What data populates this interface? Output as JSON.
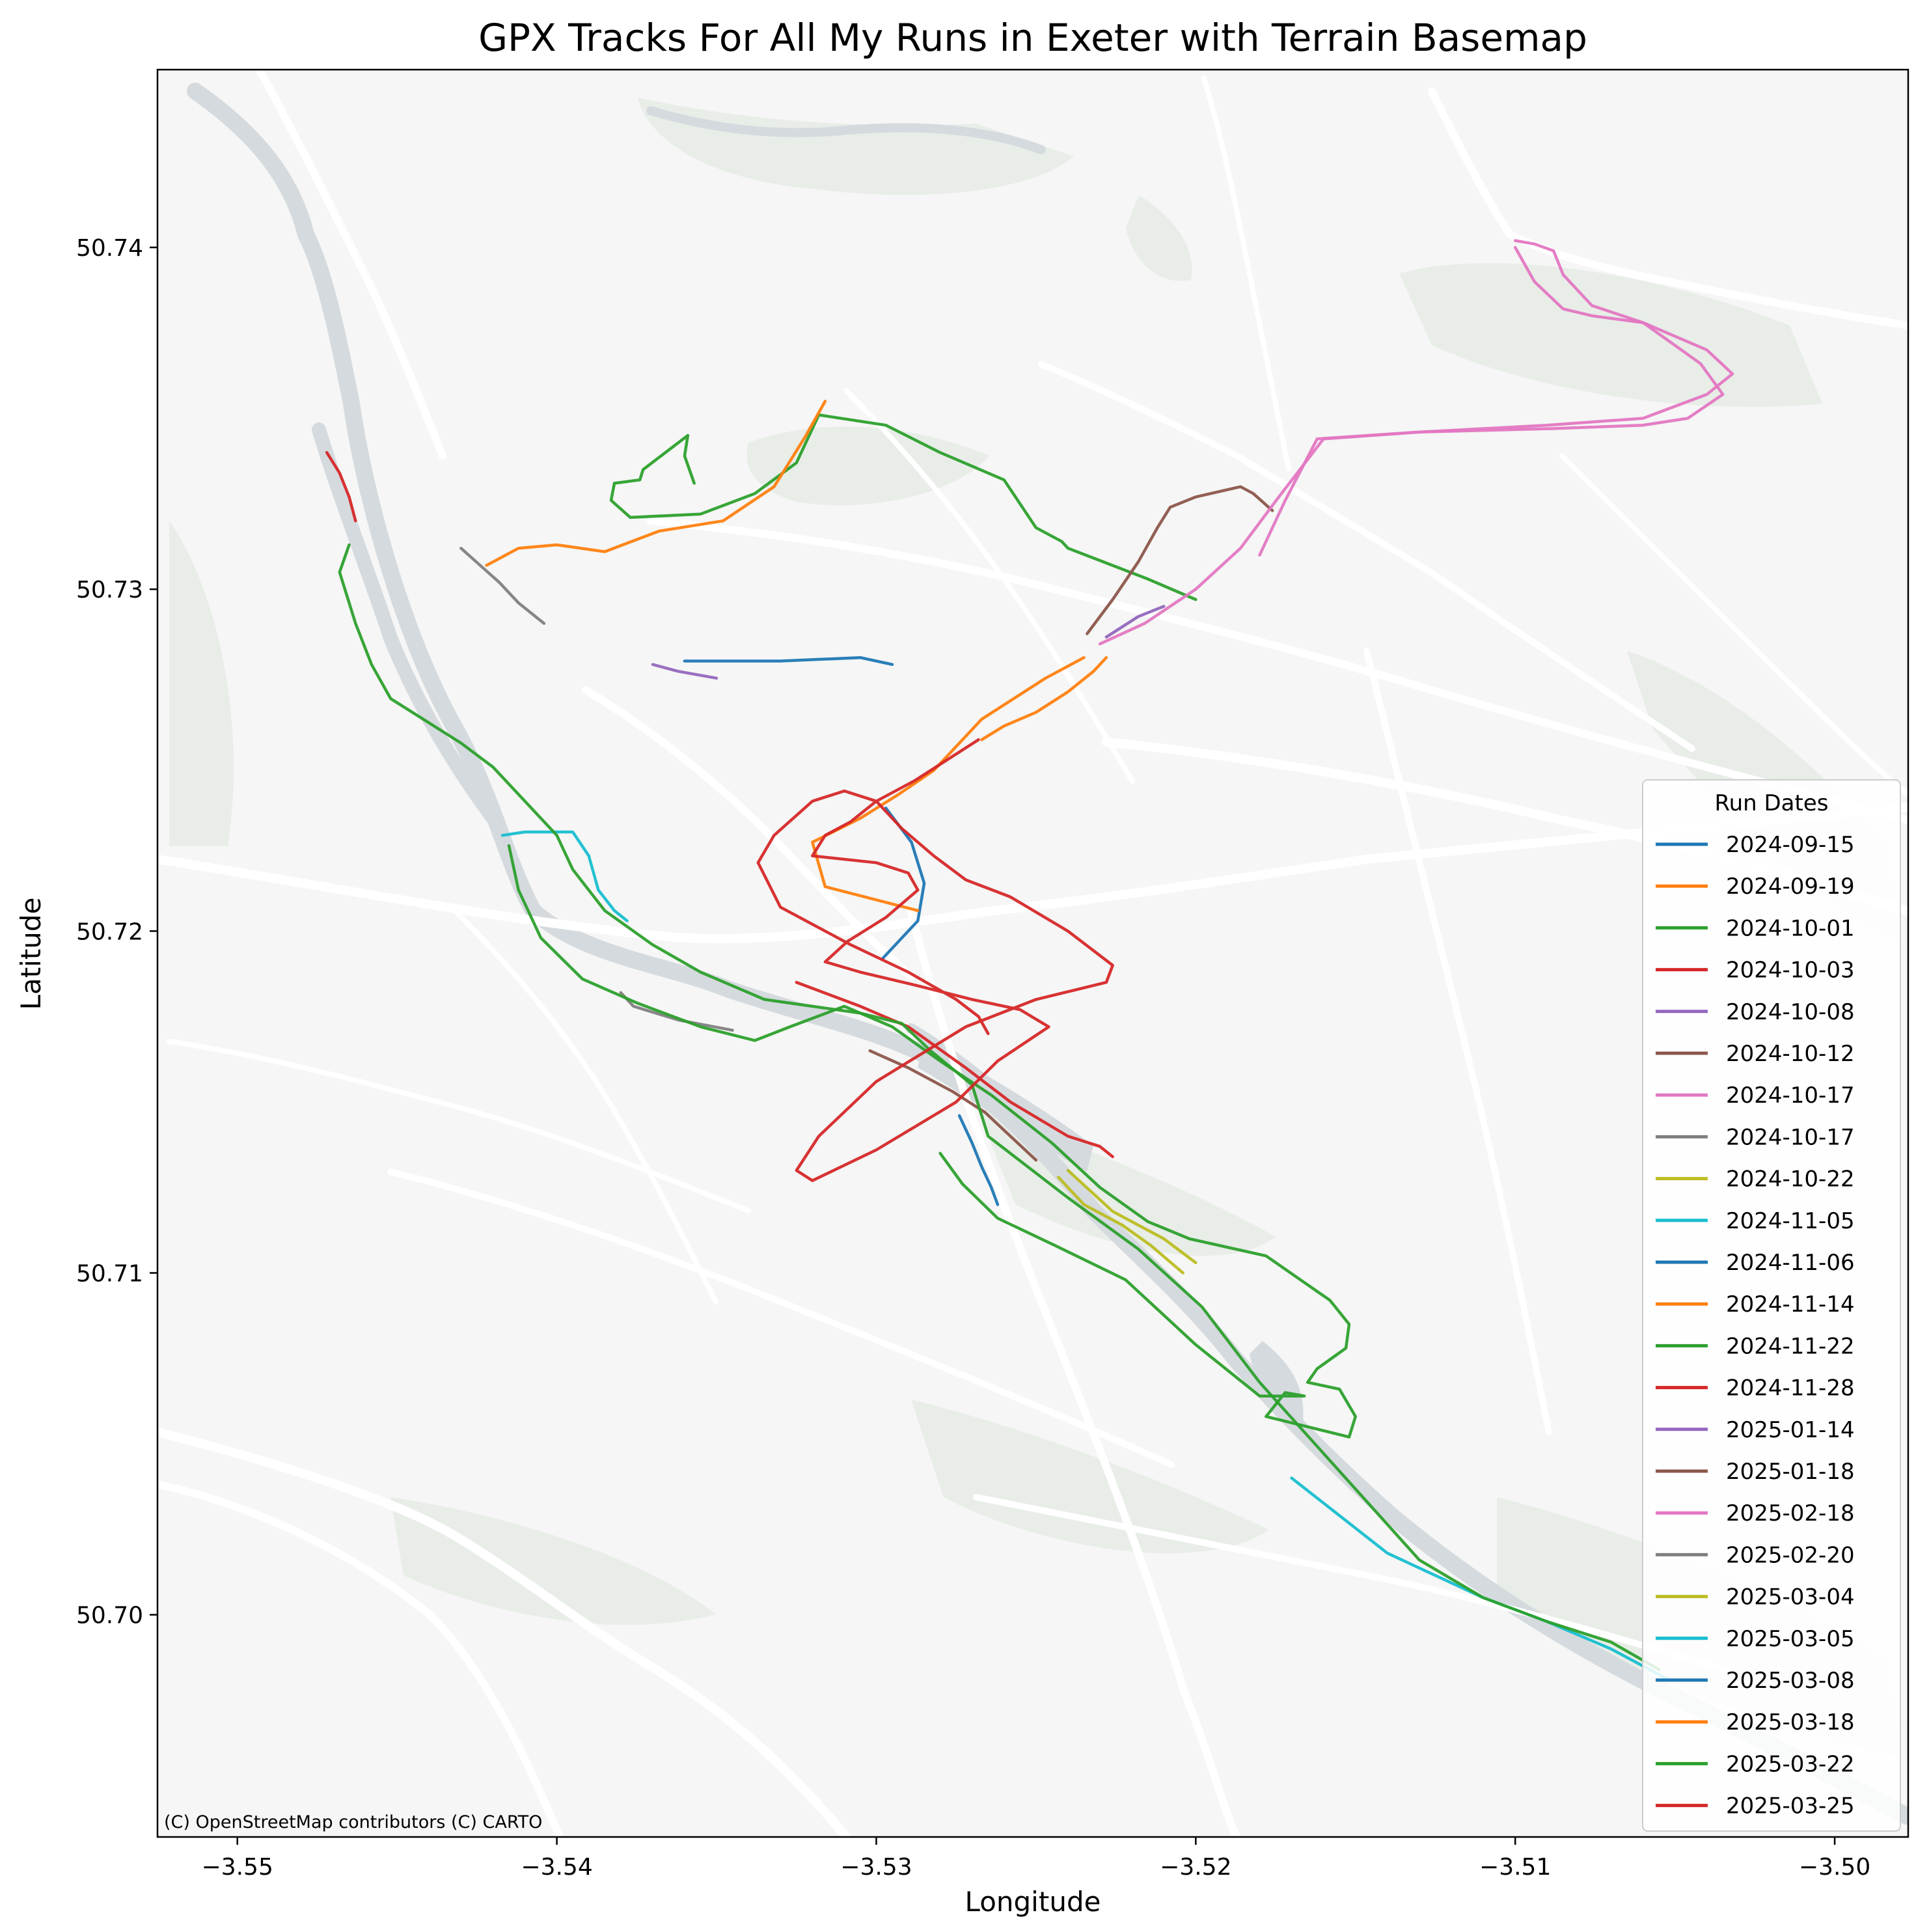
{
  "chart_data": {
    "type": "line",
    "title": "GPX Tracks For All My Runs in Exeter with Terrain Basemap",
    "xlabel": "Longitude",
    "ylabel": "Latitude",
    "xlim": [
      -3.5525,
      -3.4977
    ],
    "ylim": [
      50.6935,
      50.7452
    ],
    "xticks": [
      -3.55,
      -3.54,
      -3.53,
      -3.52,
      -3.51,
      -3.5
    ],
    "xtick_labels": [
      "−3.55",
      "−3.54",
      "−3.53",
      "−3.52",
      "−3.51",
      "−3.50"
    ],
    "yticks": [
      50.7,
      50.71,
      50.72,
      50.73,
      50.74
    ],
    "ytick_labels": [
      "50.70",
      "50.71",
      "50.72",
      "50.73",
      "50.74"
    ],
    "grid": false,
    "legend": {
      "title": "Run Dates",
      "placement": "lower-right"
    },
    "attribution": "(C) OpenStreetMap contributors (C) CARTO",
    "series": [
      {
        "name": "2024-09-15",
        "color": "#1f77b4",
        "x": [
          -3.5297,
          -3.5289,
          -3.5285,
          -3.5287,
          -3.5298
        ],
        "y": [
          50.7236,
          50.7226,
          50.7214,
          50.7203,
          50.7192
        ]
      },
      {
        "name": "2024-09-19",
        "color": "#ff7f0e",
        "x": [
          -3.5235,
          -3.5247,
          -3.5267,
          -3.5275,
          -3.5282,
          -3.5293,
          -3.5305,
          -3.532,
          -3.5316,
          -3.5287
        ],
        "y": [
          50.728,
          50.7274,
          50.7262,
          50.7254,
          50.7247,
          50.724,
          50.7233,
          50.7226,
          50.7213,
          50.7206
        ]
      },
      {
        "name": "2024-10-01",
        "color": "#2ca02c",
        "x": [
          -3.5357,
          -3.536,
          -3.5359,
          -3.5373,
          -3.5374,
          -3.5382,
          -3.5383,
          -3.5377,
          -3.5355,
          -3.5338,
          -3.5325,
          -3.5318,
          -3.5297,
          -3.528,
          -3.526,
          -3.525,
          -3.5242,
          -3.524,
          -3.5215,
          -3.52
        ],
        "y": [
          50.7331,
          50.7339,
          50.7345,
          50.7335,
          50.7332,
          50.7331,
          50.7326,
          50.7321,
          50.7322,
          50.7328,
          50.7337,
          50.7351,
          50.7348,
          50.734,
          50.7332,
          50.7318,
          50.7314,
          50.7312,
          50.7303,
          50.7297
        ]
      },
      {
        "name": "2024-10-03",
        "color": "#d62728",
        "x": [
          -3.5472,
          -3.5468,
          -3.5465,
          -3.5463
        ],
        "y": [
          50.734,
          50.7334,
          50.7327,
          50.732
        ]
      },
      {
        "name": "2024-10-08",
        "color": "#9467bd",
        "x": [
          -3.521,
          -3.5218,
          -3.5228
        ],
        "y": [
          50.7295,
          50.7292,
          50.7286
        ]
      },
      {
        "name": "2024-10-12",
        "color": "#8c564b",
        "x": [
          -3.5234,
          -3.5226,
          -3.5218,
          -3.5212,
          -3.5208,
          -3.52,
          -3.5186,
          -3.5182,
          -3.5176
        ],
        "y": [
          50.7287,
          50.7297,
          50.7308,
          50.7318,
          50.7324,
          50.7327,
          50.733,
          50.7328,
          50.7323
        ]
      },
      {
        "name": "2024-10-17",
        "color": "#e377c2",
        "x": [
          -3.518,
          -3.5172,
          -3.5162,
          -3.513,
          -3.509,
          -3.506,
          -3.504,
          -3.5032,
          -3.504,
          -3.506,
          -3.5076,
          -3.5085,
          -3.5094,
          -3.51
        ],
        "y": [
          50.731,
          50.7326,
          50.7344,
          50.7346,
          50.7348,
          50.735,
          50.7357,
          50.7363,
          50.737,
          50.7378,
          50.738,
          50.7382,
          50.739,
          50.74
        ]
      },
      {
        "name": "2024-10-17",
        "color": "#7f7f7f",
        "x": [
          -3.538,
          -3.5376,
          -3.5362,
          -3.5345
        ],
        "y": [
          50.7182,
          50.7178,
          50.7174,
          50.7171
        ]
      },
      {
        "name": "2024-10-22",
        "color": "#bcbd22",
        "x": [
          -3.5243,
          -3.5235,
          -3.5223,
          -3.5214,
          -3.5204
        ],
        "y": [
          50.7128,
          50.712,
          50.7114,
          50.7108,
          50.71
        ]
      },
      {
        "name": "2024-11-05",
        "color": "#17becf",
        "x": [
          -3.5417,
          -3.541,
          -3.5395,
          -3.539,
          -3.5387,
          -3.5382,
          -3.5378
        ],
        "y": [
          50.7228,
          50.7229,
          50.7229,
          50.7222,
          50.7212,
          50.7206,
          50.7203
        ]
      },
      {
        "name": "2024-11-06",
        "color": "#1f77b4",
        "x": [
          -3.5274,
          -3.527,
          -3.5267,
          -3.5264,
          -3.5262
        ],
        "y": [
          50.7146,
          50.7138,
          50.7131,
          50.7125,
          50.712
        ]
      },
      {
        "name": "2024-11-14",
        "color": "#ff7f0e",
        "x": [
          -3.5422,
          -3.5412,
          -3.54,
          -3.5385,
          -3.5368,
          -3.5348,
          -3.5332,
          -3.5322,
          -3.5316
        ],
        "y": [
          50.7307,
          50.7312,
          50.7313,
          50.7311,
          50.7317,
          50.732,
          50.733,
          50.7345,
          50.7355
        ]
      },
      {
        "name": "2024-11-22",
        "color": "#2ca02c",
        "x": [
          -3.5415,
          -3.5412,
          -3.5405,
          -3.5392,
          -3.5375,
          -3.5355,
          -3.5338,
          -3.5327,
          -3.531,
          -3.5295,
          -3.528,
          -3.5264,
          -3.5245,
          -3.523,
          -3.5215,
          -3.5202,
          -3.5178,
          -3.5158,
          -3.5152,
          -3.5153,
          -3.5162,
          -3.5165,
          -3.5155,
          -3.515,
          -3.5152,
          -3.5178,
          -3.5172,
          -3.5166,
          -3.518,
          -3.52,
          -3.5222,
          -3.5244,
          -3.5262,
          -3.5273,
          -3.528
        ],
        "y": [
          50.7225,
          50.7212,
          50.7198,
          50.7186,
          50.7179,
          50.7172,
          50.7168,
          50.7172,
          50.7178,
          50.7172,
          50.7162,
          50.7152,
          50.7138,
          50.7125,
          50.7115,
          50.711,
          50.7105,
          50.7092,
          50.7085,
          50.7078,
          50.7072,
          50.7068,
          50.7066,
          50.7058,
          50.7052,
          50.7058,
          50.7065,
          50.7064,
          50.7064,
          50.7079,
          50.7098,
          50.7108,
          50.7116,
          50.7126,
          50.7135
        ]
      },
      {
        "name": "2024-11-28",
        "color": "#d62728",
        "x": [
          -3.5325,
          -3.5305,
          -3.529,
          -3.5272,
          -3.5258,
          -3.524,
          -3.523,
          -3.5226
        ],
        "y": [
          50.7185,
          50.7178,
          50.7172,
          50.716,
          50.715,
          50.714,
          50.7137,
          50.7134
        ]
      },
      {
        "name": "2025-01-14",
        "color": "#9467bd",
        "x": [
          -3.537,
          -3.5362,
          -3.535
        ],
        "y": [
          50.7278,
          50.7276,
          50.7274
        ]
      },
      {
        "name": "2025-01-18",
        "color": "#8c564b",
        "x": [
          -3.5302,
          -3.529,
          -3.5276,
          -3.5266,
          -3.5258,
          -3.525
        ],
        "y": [
          50.7165,
          50.716,
          50.7153,
          50.7147,
          50.714,
          50.7133
        ]
      },
      {
        "name": "2025-02-18",
        "color": "#e377c2",
        "x": [
          -3.51,
          -3.5094,
          -3.5088,
          -3.5085,
          -3.5076,
          -3.506,
          -3.5042,
          -3.5035,
          -3.5046,
          -3.506,
          -3.5088,
          -3.513,
          -3.516,
          -3.5174,
          -3.5186,
          -3.52,
          -3.5216,
          -3.523
        ],
        "y": [
          50.7402,
          50.7401,
          50.7399,
          50.7392,
          50.7383,
          50.7378,
          50.7366,
          50.7357,
          50.735,
          50.7348,
          50.7347,
          50.7346,
          50.7344,
          50.7327,
          50.7312,
          50.73,
          50.729,
          50.7284
        ]
      },
      {
        "name": "2025-02-20",
        "color": "#7f7f7f",
        "x": [
          -3.543,
          -3.5424,
          -3.5418,
          -3.5412,
          -3.5404
        ],
        "y": [
          50.7312,
          50.7307,
          50.7302,
          50.7296,
          50.729
        ]
      },
      {
        "name": "2025-03-04",
        "color": "#bcbd22",
        "x": [
          -3.524,
          -3.5226,
          -3.521,
          -3.52
        ],
        "y": [
          50.713,
          50.7118,
          50.711,
          50.7103
        ]
      },
      {
        "name": "2025-03-05",
        "color": "#17becf",
        "x": [
          -3.517,
          -3.514,
          -3.511,
          -3.509,
          -3.507,
          -3.5052
        ],
        "y": [
          50.704,
          50.7018,
          50.7005,
          50.6998,
          50.699,
          50.6981
        ]
      },
      {
        "name": "2025-03-08",
        "color": "#1f77b4",
        "x": [
          -3.536,
          -3.533,
          -3.5305,
          -3.5295
        ],
        "y": [
          50.7279,
          50.7279,
          50.728,
          50.7278
        ]
      },
      {
        "name": "2025-03-18",
        "color": "#ff7f0e",
        "x": [
          -3.5267,
          -3.526,
          -3.525,
          -3.524,
          -3.5232,
          -3.5228
        ],
        "y": [
          50.7256,
          50.726,
          50.7264,
          50.727,
          50.7276,
          50.728
        ]
      },
      {
        "name": "2025-03-22",
        "color": "#2ca02c",
        "x": [
          -3.5465,
          -3.5468,
          -3.5463,
          -3.5458,
          -3.5452,
          -3.543,
          -3.542,
          -3.54,
          -3.5395,
          -3.5385,
          -3.537,
          -3.5355,
          -3.5335,
          -3.532,
          -3.5305,
          -3.5292,
          -3.5283,
          -3.527,
          -3.5265,
          -3.524,
          -3.5218,
          -3.5198,
          -3.518,
          -3.5155,
          -3.513,
          -3.511,
          -3.509,
          -3.507,
          -3.5055
        ],
        "y": [
          50.7313,
          50.7305,
          50.729,
          50.7278,
          50.7268,
          50.7255,
          50.7248,
          50.7228,
          50.7218,
          50.7206,
          50.7196,
          50.7188,
          50.718,
          50.7178,
          50.7176,
          50.7173,
          50.7165,
          50.7155,
          50.714,
          50.7122,
          50.7107,
          50.709,
          50.7068,
          50.7042,
          50.7016,
          50.7005,
          50.6998,
          50.6992,
          50.6984
        ]
      },
      {
        "name": "2025-03-25",
        "color": "#d62728",
        "x": [
          -3.5268,
          -3.5278,
          -3.5288,
          -3.53,
          -3.5308,
          -3.5316,
          -3.532,
          -3.53,
          -3.529,
          -3.5287,
          -3.5297,
          -3.5309,
          -3.5316,
          -3.5305,
          -3.5287,
          -3.527,
          -3.5255,
          -3.5246,
          -3.5262,
          -3.5275,
          -3.53,
          -3.532,
          -3.5325,
          -3.5318,
          -3.53,
          -3.5272,
          -3.525,
          -3.5228,
          -3.5226,
          -3.524,
          -3.5258,
          -3.5272,
          -3.5282,
          -3.5292,
          -3.53,
          -3.531,
          -3.532,
          -3.5332,
          -3.5337,
          -3.533,
          -3.5308,
          -3.529,
          -3.5275,
          -3.5268,
          -3.5265
        ],
        "y": [
          50.7256,
          50.725,
          50.7244,
          50.7238,
          50.7232,
          50.7228,
          50.7222,
          50.722,
          50.7217,
          50.7212,
          50.7204,
          50.7197,
          50.7191,
          50.7188,
          50.7184,
          50.718,
          50.7177,
          50.7172,
          50.7162,
          50.715,
          50.7136,
          50.7127,
          50.713,
          50.714,
          50.7156,
          50.7172,
          50.718,
          50.7185,
          50.719,
          50.72,
          50.721,
          50.7215,
          50.7222,
          50.723,
          50.7238,
          50.7241,
          50.7238,
          50.7228,
          50.722,
          50.7207,
          50.7196,
          50.7188,
          50.718,
          50.7175,
          50.717
        ]
      }
    ]
  }
}
